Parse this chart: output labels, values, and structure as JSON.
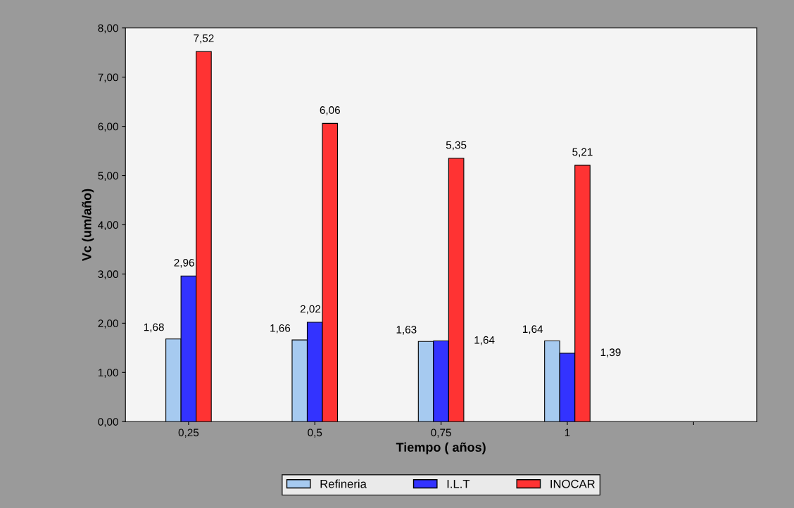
{
  "chart_data": {
    "type": "bar",
    "xlabel": "Tiempo ( años)",
    "ylabel": "Vc (um/año)",
    "categories": [
      "0,25",
      "0,5",
      "0,75",
      "1",
      null
    ],
    "series": [
      {
        "name": "Refineria",
        "color": "#a6caf0",
        "values": [
          1.68,
          1.66,
          1.63,
          1.64,
          null
        ]
      },
      {
        "name": "I.L.T",
        "color": "#3333ff",
        "values": [
          2.96,
          2.02,
          1.64,
          1.39,
          null
        ]
      },
      {
        "name": "INOCAR",
        "color": "#ff3333",
        "values": [
          7.52,
          6.06,
          5.35,
          5.21,
          null
        ]
      }
    ],
    "ylim": [
      0,
      8
    ],
    "yticks": [
      {
        "value": 0,
        "label": "0,00"
      },
      {
        "value": 1,
        "label": "1,00"
      },
      {
        "value": 2,
        "label": "2,00"
      },
      {
        "value": 3,
        "label": "3,00"
      },
      {
        "value": 4,
        "label": "4,00"
      },
      {
        "value": 5,
        "label": "5,00"
      },
      {
        "value": 6,
        "label": "6,00"
      },
      {
        "value": 7,
        "label": "7,00"
      },
      {
        "value": 8,
        "label": "8,00"
      }
    ],
    "value_labels": [
      [
        "1,68",
        "1,66",
        "1,63",
        "1,64",
        null
      ],
      [
        "2,96",
        "2,02",
        "1,64",
        "1,39",
        null
      ],
      [
        "7,52",
        "6,06",
        "5,35",
        "5,21",
        null
      ]
    ],
    "grid": false,
    "legend": "bottom"
  }
}
